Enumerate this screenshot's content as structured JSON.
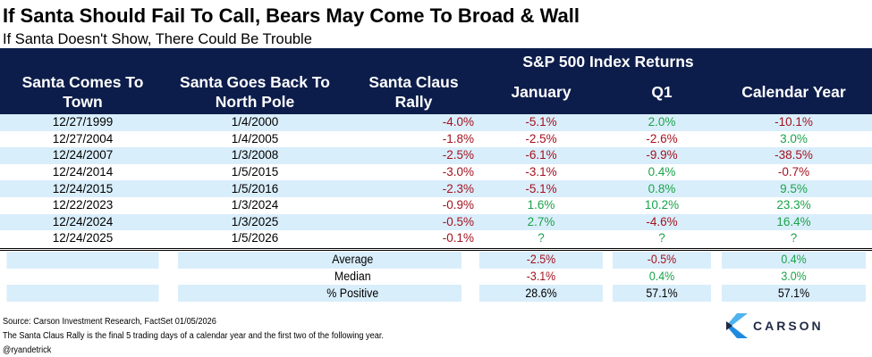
{
  "title": "If Santa Should Fail To Call, Bears May Come To Broad & Wall",
  "subtitle": "If Santa Doesn't Show, There Could Be Trouble",
  "header": {
    "group_label": "S&P 500 Index Returns",
    "columns": [
      "Santa Comes To Town",
      "Santa Goes Back To North Pole",
      "Santa Claus Rally",
      "January",
      "Q1",
      "Calendar Year"
    ]
  },
  "rows": [
    {
      "start": "12/27/1999",
      "end": "1/4/2000",
      "rally": "-4.0%",
      "january": "-5.1%",
      "q1": "2.0%",
      "year": "-10.1%"
    },
    {
      "start": "12/27/2004",
      "end": "1/4/2005",
      "rally": "-1.8%",
      "january": "-2.5%",
      "q1": "-2.6%",
      "year": "3.0%"
    },
    {
      "start": "12/24/2007",
      "end": "1/3/2008",
      "rally": "-2.5%",
      "january": "-6.1%",
      "q1": "-9.9%",
      "year": "-38.5%"
    },
    {
      "start": "12/24/2014",
      "end": "1/5/2015",
      "rally": "-3.0%",
      "january": "-3.1%",
      "q1": "0.4%",
      "year": "-0.7%"
    },
    {
      "start": "12/24/2015",
      "end": "1/5/2016",
      "rally": "-2.3%",
      "january": "-5.1%",
      "q1": "0.8%",
      "year": "9.5%"
    },
    {
      "start": "12/22/2023",
      "end": "1/3/2024",
      "rally": "-0.9%",
      "january": "1.6%",
      "q1": "10.2%",
      "year": "23.3%"
    },
    {
      "start": "12/24/2024",
      "end": "1/3/2025",
      "rally": "-0.5%",
      "january": "2.7%",
      "q1": "-4.6%",
      "year": "16.4%"
    },
    {
      "start": "12/24/2025",
      "end": "1/5/2026",
      "rally": "-0.1%",
      "january": "?",
      "q1": "?",
      "year": "?"
    }
  ],
  "summary": [
    {
      "label": "Average",
      "january": "-2.5%",
      "q1": "-0.5%",
      "year": "0.4%"
    },
    {
      "label": "Median",
      "january": "-3.1%",
      "q1": "0.4%",
      "year": "3.0%"
    },
    {
      "label": "% Positive",
      "january": "28.6%",
      "q1": "57.1%",
      "year": "57.1%"
    }
  ],
  "footer": {
    "source": "Source: Carson Investment Research, FactSet 01/05/2026",
    "note": "The Santa Claus Rally is the final 5 trading days of a calendar year and the first two of the following year.",
    "handle": "@ryandetrick"
  },
  "logo": {
    "text": "CARSON",
    "icon": "carson-chevron-icon"
  },
  "colors": {
    "header_bg": "#0d1d4b",
    "row_shade": "#d9eefb",
    "negative": "#a3121f",
    "positive": "#1aa34a"
  }
}
